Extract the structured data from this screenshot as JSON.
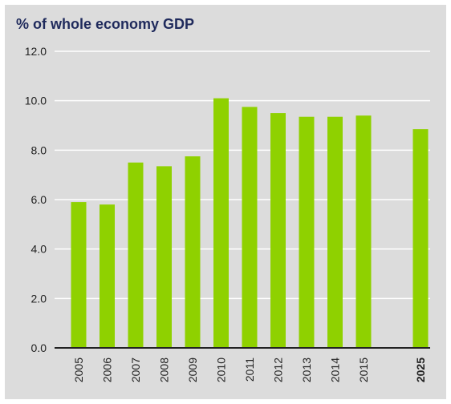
{
  "chart_data": {
    "type": "bar",
    "title": "% of whole economy GDP",
    "categories": [
      "2005",
      "2006",
      "2007",
      "2008",
      "2009",
      "2010",
      "2011",
      "2012",
      "2013",
      "2014",
      "2015",
      "2025"
    ],
    "values": [
      5.9,
      5.8,
      7.5,
      7.35,
      7.75,
      10.1,
      9.75,
      9.5,
      9.35,
      9.35,
      9.4,
      8.85
    ],
    "highlighted_categories": [
      "2025"
    ],
    "yticks": [
      "0.0",
      "2.0",
      "4.0",
      "6.0",
      "8.0",
      "10.0",
      "12.0"
    ],
    "ylim": [
      0,
      12
    ],
    "xlabel": "",
    "ylabel": "",
    "grid": true,
    "legend": "none",
    "colors": {
      "bar": "#8fd100",
      "background": "#dcdcdc",
      "grid": "#ffffff",
      "title": "#1f2a5c"
    }
  }
}
